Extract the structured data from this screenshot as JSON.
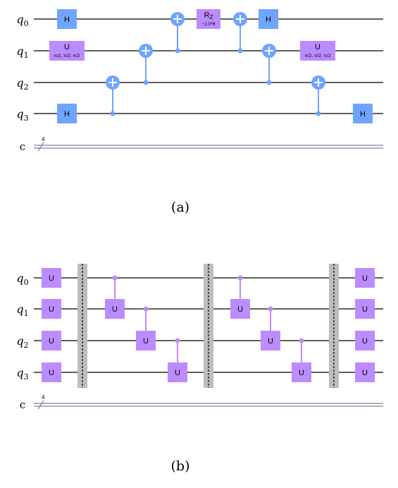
{
  "colors": {
    "wire": "#000000",
    "classical_wire": "#778899",
    "gate_h": "#6fa4ff",
    "gate_u": "#bb8bff",
    "cnot": "#6fa4ff",
    "control_u": "#bb8bff",
    "barrier": "#bdbdbd"
  },
  "circuit_a": {
    "caption": "(a)",
    "qubit_labels": [
      {
        "base": "q",
        "sub": "0"
      },
      {
        "base": "q",
        "sub": "1"
      },
      {
        "base": "q",
        "sub": "2"
      },
      {
        "base": "q",
        "sub": "3"
      }
    ],
    "classical_label": "c",
    "classical_count": "4",
    "gates": [
      {
        "type": "H",
        "label": "H",
        "qubit": 0,
        "step": 1
      },
      {
        "type": "U",
        "label": "U",
        "params": "π/2, π/2, π/2",
        "qubit": 1,
        "step": 1
      },
      {
        "type": "H",
        "label": "H",
        "qubit": 3,
        "step": 1
      },
      {
        "type": "CX",
        "control": 3,
        "target": 2,
        "step": 2
      },
      {
        "type": "CX",
        "control": 2,
        "target": 1,
        "step": 3
      },
      {
        "type": "CX",
        "control": 1,
        "target": 0,
        "step": 4
      },
      {
        "type": "RZ",
        "label": "R",
        "label_sub": "Z",
        "params": "−2.0*θ",
        "qubit": 0,
        "step": 5
      },
      {
        "type": "CX",
        "control": 1,
        "target": 0,
        "step": 6
      },
      {
        "type": "CX",
        "control": 2,
        "target": 1,
        "step": 7
      },
      {
        "type": "H",
        "label": "H",
        "qubit": 0,
        "step": 7.5
      },
      {
        "type": "CX",
        "control": 3,
        "target": 2,
        "step": 8
      },
      {
        "type": "U",
        "label": "U",
        "params": "π/2, π/2, π/2",
        "qubit": 1,
        "step": 8
      },
      {
        "type": "H",
        "label": "H",
        "qubit": 3,
        "step": 9
      }
    ]
  },
  "circuit_b": {
    "caption": "(b)",
    "qubit_labels": [
      {
        "base": "q",
        "sub": "0"
      },
      {
        "base": "q",
        "sub": "1"
      },
      {
        "base": "q",
        "sub": "2"
      },
      {
        "base": "q",
        "sub": "3"
      }
    ],
    "classical_label": "c",
    "classical_count": "4",
    "gate_label": "U",
    "gates": [
      {
        "type": "U",
        "qubit": 0,
        "step": 0
      },
      {
        "type": "U",
        "qubit": 1,
        "step": 0
      },
      {
        "type": "U",
        "qubit": 2,
        "step": 0
      },
      {
        "type": "U",
        "qubit": 3,
        "step": 0
      },
      {
        "type": "BARRIER",
        "step": 1
      },
      {
        "type": "CU",
        "control": 0,
        "target": 1,
        "step": 2
      },
      {
        "type": "CU",
        "control": 1,
        "target": 2,
        "step": 3
      },
      {
        "type": "CU",
        "control": 2,
        "target": 3,
        "step": 4
      },
      {
        "type": "BARRIER",
        "step": 5
      },
      {
        "type": "CU",
        "control": 0,
        "target": 1,
        "step": 6
      },
      {
        "type": "CU",
        "control": 1,
        "target": 2,
        "step": 7
      },
      {
        "type": "CU",
        "control": 2,
        "target": 3,
        "step": 8
      },
      {
        "type": "BARRIER",
        "step": 9
      },
      {
        "type": "U",
        "qubit": 0,
        "step": 10
      },
      {
        "type": "U",
        "qubit": 1,
        "step": 10
      },
      {
        "type": "U",
        "qubit": 2,
        "step": 10
      },
      {
        "type": "U",
        "qubit": 3,
        "step": 10
      }
    ]
  }
}
